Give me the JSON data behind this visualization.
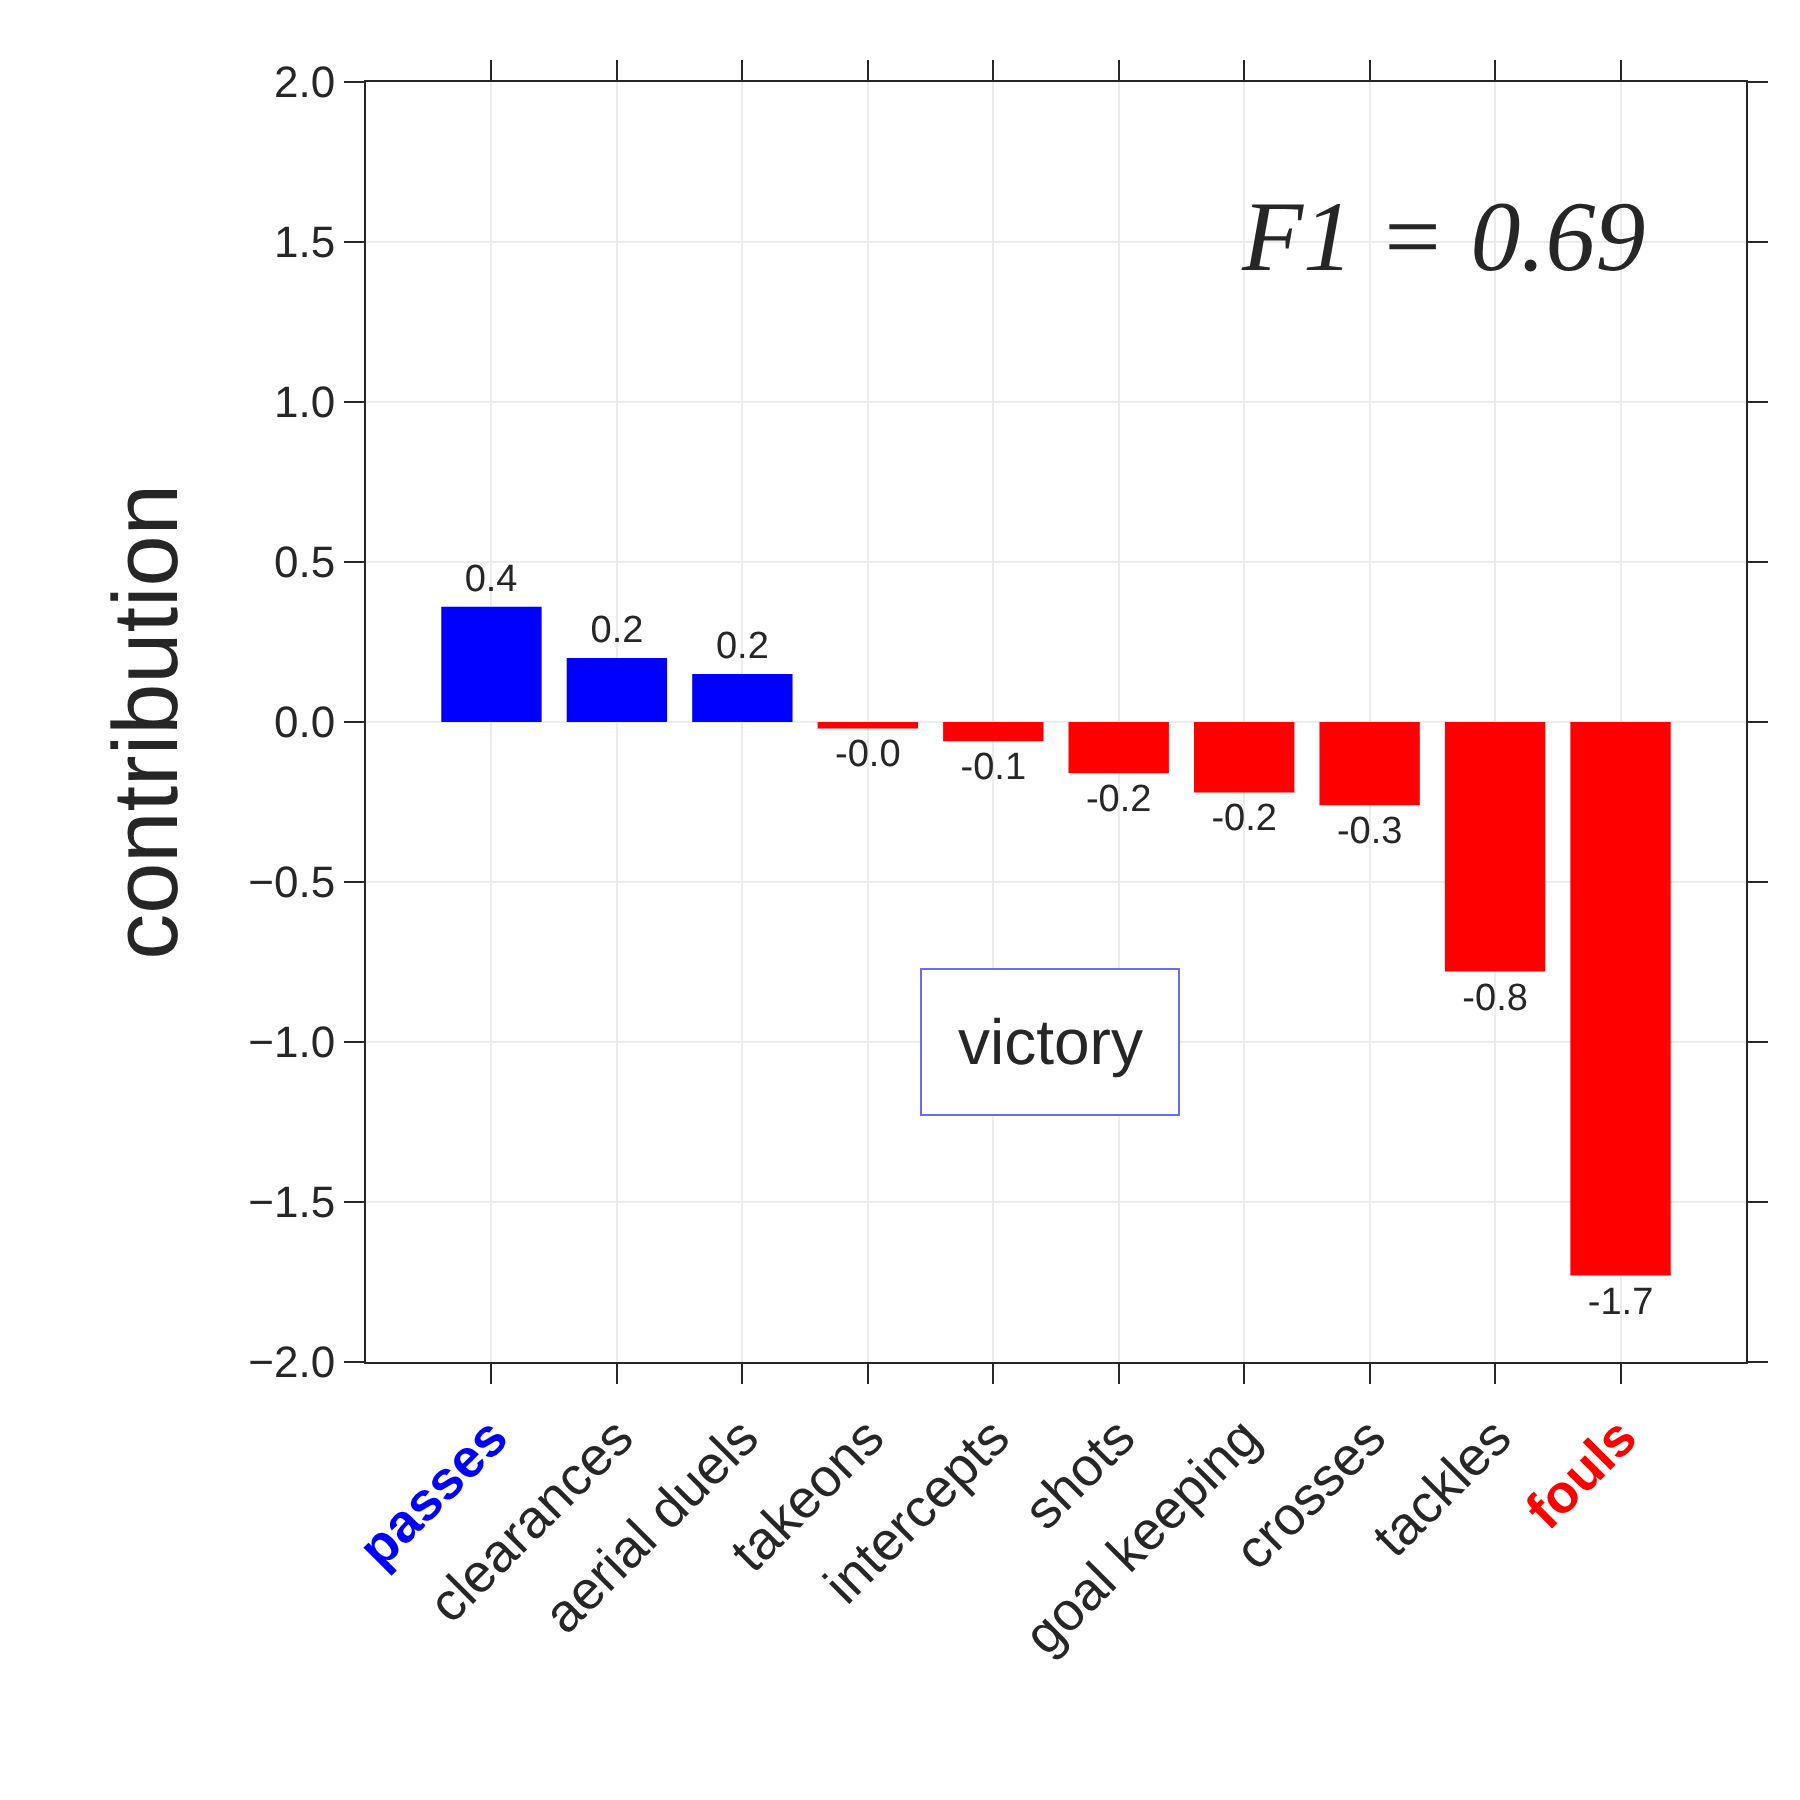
{
  "chart_data": {
    "type": "bar",
    "ylabel": "contribution",
    "categories": [
      "passes",
      "clearances",
      "aerial duels",
      "takeons",
      "intercepts",
      "shots",
      "goal keeping",
      "crosses",
      "tackles",
      "fouls"
    ],
    "values": [
      0.36,
      0.2,
      0.15,
      -0.02,
      -0.06,
      -0.16,
      -0.22,
      -0.26,
      -0.78,
      -1.73
    ],
    "colors": [
      "#0000ff",
      "#0000ff",
      "#0000ff",
      "#ff0000",
      "#ff0000",
      "#ff0000",
      "#ff0000",
      "#ff0000",
      "#ff0000",
      "#ff0000"
    ],
    "value_labels": [
      "0.4",
      "0.2",
      "0.2",
      "-0.0",
      "-0.1",
      "-0.2",
      "-0.2",
      "-0.3",
      "-0.8",
      "-1.7"
    ],
    "ylim": [
      -2.0,
      2.0
    ],
    "yticks": [
      {
        "value": -2.0,
        "label": "−2.0"
      },
      {
        "value": -1.5,
        "label": "−1.5"
      },
      {
        "value": -1.0,
        "label": "−1.0"
      },
      {
        "value": -0.5,
        "label": "−0.5"
      },
      {
        "value": 0.0,
        "label": "0.0"
      },
      {
        "value": 0.5,
        "label": "0.5"
      },
      {
        "value": 1.0,
        "label": "1.0"
      },
      {
        "value": 1.5,
        "label": "1.5"
      },
      {
        "value": 2.0,
        "label": "2.0"
      }
    ],
    "annotations": [
      "F1 = 0.69",
      "victory"
    ],
    "grid": true
  }
}
